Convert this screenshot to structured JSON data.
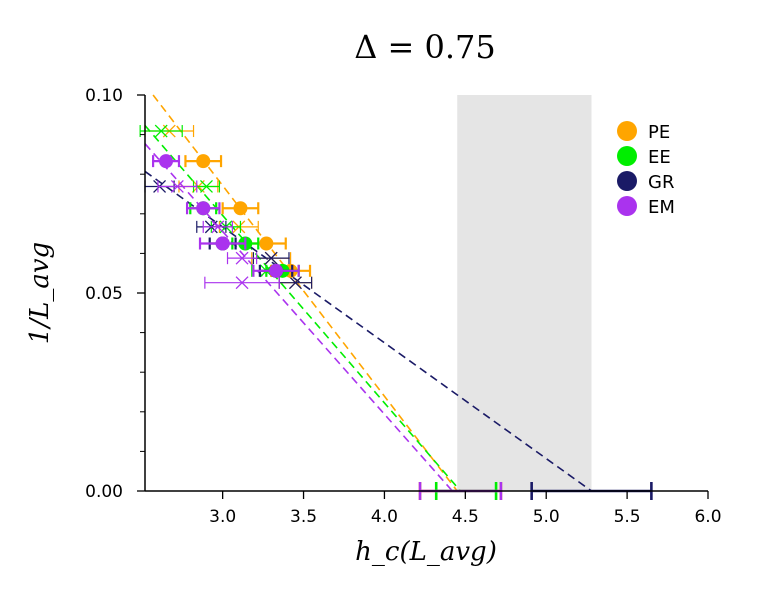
{
  "chart_data": {
    "type": "scatter",
    "title": "Δ = 0.75",
    "xlabel": "h_c(L_avg)",
    "ylabel": "1/L_avg",
    "xlim": [
      2.52,
      6.0
    ],
    "ylim": [
      0.0,
      0.1
    ],
    "xticks": [
      3.0,
      3.5,
      4.0,
      4.5,
      5.0,
      5.5,
      6.0
    ],
    "xtick_labels": [
      "3.0",
      "3.5",
      "4.0",
      "4.5",
      "5.0",
      "5.5",
      "6.0"
    ],
    "yticks": [
      0.0,
      0.05,
      0.1
    ],
    "ytick_labels": [
      "0.00",
      "0.05",
      "0.10"
    ],
    "yminor_ticks": [
      0.01,
      0.02,
      0.03,
      0.04,
      0.06,
      0.07,
      0.08,
      0.09
    ],
    "shaded_region": {
      "x": [
        4.45,
        5.28
      ],
      "color": "#e5e5e5"
    },
    "legend_position": "top-right",
    "series": [
      {
        "name": "PE",
        "color": "#ffa500",
        "points": [
          {
            "x": 2.88,
            "y": 0.0833,
            "xerr": 0.11
          },
          {
            "x": 3.11,
            "y": 0.0714,
            "xerr": 0.11
          },
          {
            "x": 3.27,
            "y": 0.0625,
            "xerr": 0.12
          },
          {
            "x": 3.42,
            "y": 0.0556,
            "xerr": 0.12
          }
        ],
        "crosses": [
          {
            "x": 2.67,
            "y": 0.0909,
            "xerr": 0.15
          },
          {
            "x": 2.85,
            "y": 0.0769,
            "xerr": 0.12
          },
          {
            "x": 3.1,
            "y": 0.0667,
            "xerr": 0.12
          },
          {
            "x": 3.3,
            "y": 0.0588,
            "xerr": 0.12
          },
          {
            "x": 3.45,
            "y": 0.0526,
            "xerr": 0.1
          }
        ],
        "fit_line": {
          "x": [
            2.57,
            4.45
          ],
          "y": [
            0.1,
            0.0
          ]
        },
        "hc_extrapolation": {
          "x": 4.44,
          "xerr_low": 0.22,
          "xerr_high": 0.28
        }
      },
      {
        "name": "EE",
        "color": "#00ee00",
        "points": [
          {
            "x": 2.88,
            "y": 0.0714,
            "xerr": 0.08
          },
          {
            "x": 3.14,
            "y": 0.0625,
            "xerr": 0.08
          },
          {
            "x": 3.37,
            "y": 0.0556,
            "xerr": 0.1
          }
        ],
        "crosses": [
          {
            "x": 2.62,
            "y": 0.0909,
            "xerr": 0.13
          },
          {
            "x": 2.9,
            "y": 0.0769,
            "xerr": 0.08
          },
          {
            "x": 3.02,
            "y": 0.0667,
            "xerr": 0.09
          },
          {
            "x": 3.27,
            "y": 0.0556,
            "xerr": 0.09
          }
        ],
        "fit_line": {
          "x": [
            2.52,
            4.47
          ],
          "y": [
            0.0923,
            0.0
          ]
        },
        "hc_extrapolation": {
          "x": 4.47,
          "xerr_low": 0.15,
          "xerr_high": 0.22
        }
      },
      {
        "name": "GR",
        "color": "#1a1a66",
        "points": [
          {
            "x": 3.0,
            "y": 0.0625,
            "xerr": 0.08
          },
          {
            "x": 3.33,
            "y": 0.0556,
            "xerr": 0.1
          }
        ],
        "crosses": [
          {
            "x": 2.61,
            "y": 0.0769,
            "xerr": 0.09
          },
          {
            "x": 2.93,
            "y": 0.0667,
            "xerr": 0.09
          },
          {
            "x": 3.3,
            "y": 0.0588,
            "xerr": 0.11
          },
          {
            "x": 3.45,
            "y": 0.0526,
            "xerr": 0.1
          }
        ],
        "fit_line": {
          "x": [
            2.52,
            5.28
          ],
          "y": [
            0.0807,
            0.0
          ]
        },
        "hc_extrapolation": {
          "x": 5.28,
          "xerr_low": 0.37,
          "xerr_high": 0.37
        }
      },
      {
        "name": "EM",
        "color": "#aa33ee",
        "points": [
          {
            "x": 2.65,
            "y": 0.0833,
            "xerr": 0.08
          },
          {
            "x": 2.88,
            "y": 0.0714,
            "xerr": 0.1
          },
          {
            "x": 3.0,
            "y": 0.0625,
            "xerr": 0.14
          },
          {
            "x": 3.33,
            "y": 0.0556,
            "xerr": 0.14
          }
        ],
        "crosses": [
          {
            "x": 2.72,
            "y": 0.0769,
            "xerr": 0.12
          },
          {
            "x": 2.97,
            "y": 0.0667,
            "xerr": 0.09
          },
          {
            "x": 3.12,
            "y": 0.0588,
            "xerr": 0.09
          },
          {
            "x": 3.12,
            "y": 0.0526,
            "xerr": 0.23
          }
        ],
        "fit_line": {
          "x": [
            2.52,
            4.42
          ],
          "y": [
            0.0877,
            0.0
          ]
        },
        "hc_extrapolation": {
          "x": 4.46,
          "xerr_low": 0.24,
          "xerr_high": 0.26
        }
      }
    ]
  }
}
